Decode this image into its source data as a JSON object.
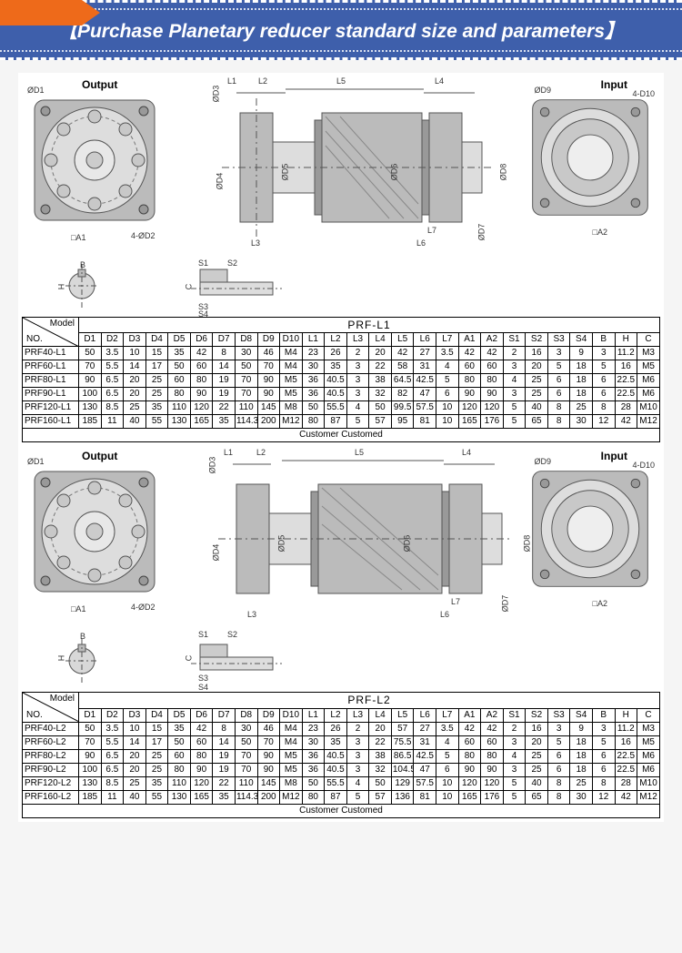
{
  "banner": {
    "title": "【Purchase  Planetary reducer standard size and parameters】",
    "bg_color": "#3e5fab",
    "tab_color": "#ee6a1a",
    "text_color": "#ffffff"
  },
  "labels": {
    "output": "Output",
    "input": "Input",
    "d1": "ØD1",
    "d2": "4-ØD2",
    "d9": "ØD9",
    "d10": "4-D10",
    "a1": "□A1",
    "a2": "□A2",
    "d3": "ØD3",
    "d4": "ØD4",
    "d5": "ØD5",
    "d6": "ØD6",
    "d7": "ØD7",
    "d8": "ØD8",
    "l1": "L1",
    "l2": "L2",
    "l3": "L3",
    "l4": "L4",
    "l5": "L5",
    "l6": "L6",
    "l7": "L7",
    "s1": "S1",
    "s2": "S2",
    "s3": "S3",
    "s4": "S4",
    "b": "B",
    "h": "H",
    "c": "C",
    "customed": "Customer Customed",
    "model": "Model",
    "no": "NO."
  },
  "tables": [
    {
      "series": "PRF-L1",
      "cols": [
        "D1",
        "D2",
        "D3",
        "D4",
        "D5",
        "D6",
        "D7",
        "D8",
        "D9",
        "D10",
        "L1",
        "L2",
        "L3",
        "L4",
        "L5",
        "L6",
        "L7",
        "A1",
        "A2",
        "S1",
        "S2",
        "S3",
        "S4",
        "B",
        "H",
        "C"
      ],
      "rows": [
        {
          "m": "PRF40-L1",
          "v": [
            "50",
            "3.5",
            "10",
            "15",
            "35",
            "42",
            "8",
            "30",
            "46",
            "M4",
            "23",
            "26",
            "2",
            "20",
            "42",
            "27",
            "3.5",
            "42",
            "42",
            "2",
            "16",
            "3",
            "9",
            "3",
            "11.2",
            "M3"
          ]
        },
        {
          "m": "PRF60-L1",
          "v": [
            "70",
            "5.5",
            "14",
            "17",
            "50",
            "60",
            "14",
            "50",
            "70",
            "M4",
            "30",
            "35",
            "3",
            "22",
            "58",
            "31",
            "4",
            "60",
            "60",
            "3",
            "20",
            "5",
            "18",
            "5",
            "16",
            "M5"
          ]
        },
        {
          "m": "PRF80-L1",
          "v": [
            "90",
            "6.5",
            "20",
            "25",
            "60",
            "80",
            "19",
            "70",
            "90",
            "M5",
            "36",
            "40.5",
            "3",
            "38",
            "64.5",
            "42.5",
            "5",
            "80",
            "80",
            "4",
            "25",
            "6",
            "18",
            "6",
            "22.5",
            "M6"
          ]
        },
        {
          "m": "PRF90-L1",
          "v": [
            "100",
            "6.5",
            "20",
            "25",
            "80",
            "90",
            "19",
            "70",
            "90",
            "M5",
            "36",
            "40.5",
            "3",
            "32",
            "82",
            "47",
            "6",
            "90",
            "90",
            "3",
            "25",
            "6",
            "18",
            "6",
            "22.5",
            "M6"
          ]
        },
        {
          "m": "PRF120-L1",
          "v": [
            "130",
            "8.5",
            "25",
            "35",
            "110",
            "120",
            "22",
            "110",
            "145",
            "M8",
            "50",
            "55.5",
            "4",
            "50",
            "99.5",
            "57.5",
            "10",
            "120",
            "120",
            "5",
            "40",
            "8",
            "25",
            "8",
            "28",
            "M10"
          ]
        },
        {
          "m": "PRF160-L1",
          "v": [
            "185",
            "11",
            "40",
            "55",
            "130",
            "165",
            "35",
            "114.3",
            "200",
            "M12",
            "80",
            "87",
            "5",
            "57",
            "95",
            "81",
            "10",
            "165",
            "176",
            "5",
            "65",
            "8",
            "30",
            "12",
            "42",
            "M12"
          ]
        }
      ]
    },
    {
      "series": "PRF-L2",
      "cols": [
        "D1",
        "D2",
        "D3",
        "D4",
        "D5",
        "D6",
        "D7",
        "D8",
        "D9",
        "D10",
        "L1",
        "L2",
        "L3",
        "L4",
        "L5",
        "L6",
        "L7",
        "A1",
        "A2",
        "S1",
        "S2",
        "S3",
        "S4",
        "B",
        "H",
        "C"
      ],
      "rows": [
        {
          "m": "PRF40-L2",
          "v": [
            "50",
            "3.5",
            "10",
            "15",
            "35",
            "42",
            "8",
            "30",
            "46",
            "M4",
            "23",
            "26",
            "2",
            "20",
            "57",
            "27",
            "3.5",
            "42",
            "42",
            "2",
            "16",
            "3",
            "9",
            "3",
            "11.2",
            "M3"
          ]
        },
        {
          "m": "PRF60-L2",
          "v": [
            "70",
            "5.5",
            "14",
            "17",
            "50",
            "60",
            "14",
            "50",
            "70",
            "M4",
            "30",
            "35",
            "3",
            "22",
            "75.5",
            "31",
            "4",
            "60",
            "60",
            "3",
            "20",
            "5",
            "18",
            "5",
            "16",
            "M5"
          ]
        },
        {
          "m": "PRF80-L2",
          "v": [
            "90",
            "6.5",
            "20",
            "25",
            "60",
            "80",
            "19",
            "70",
            "90",
            "M5",
            "36",
            "40.5",
            "3",
            "38",
            "86.5",
            "42.5",
            "5",
            "80",
            "80",
            "4",
            "25",
            "6",
            "18",
            "6",
            "22.5",
            "M6"
          ]
        },
        {
          "m": "PRF90-L2",
          "v": [
            "100",
            "6.5",
            "20",
            "25",
            "80",
            "90",
            "19",
            "70",
            "90",
            "M5",
            "36",
            "40.5",
            "3",
            "32",
            "104.5",
            "47",
            "6",
            "90",
            "90",
            "3",
            "25",
            "6",
            "18",
            "6",
            "22.5",
            "M6"
          ]
        },
        {
          "m": "PRF120-L2",
          "v": [
            "130",
            "8.5",
            "25",
            "35",
            "110",
            "120",
            "22",
            "110",
            "145",
            "M8",
            "50",
            "55.5",
            "4",
            "50",
            "129",
            "57.5",
            "10",
            "120",
            "120",
            "5",
            "40",
            "8",
            "25",
            "8",
            "28",
            "M10"
          ]
        },
        {
          "m": "PRF160-L2",
          "v": [
            "185",
            "11",
            "40",
            "55",
            "130",
            "165",
            "35",
            "114.3",
            "200",
            "M12",
            "80",
            "87",
            "5",
            "57",
            "136",
            "81",
            "10",
            "165",
            "176",
            "5",
            "65",
            "8",
            "30",
            "12",
            "42",
            "M12"
          ]
        }
      ]
    }
  ],
  "style": {
    "page_bg": "#ffffff",
    "line_color": "#000000",
    "draw_color": "#333333",
    "hatch_color": "#888888"
  }
}
